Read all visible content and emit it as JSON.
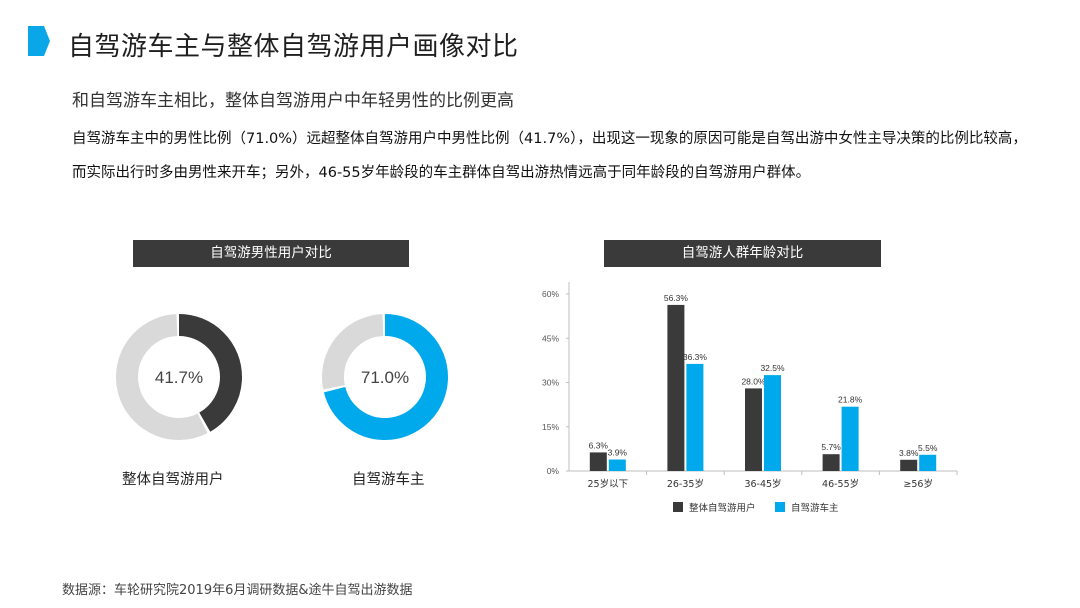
{
  "header": {
    "title": "自驾游车主与整体自驾游用户画像对比",
    "accent_color": "#0aa7e8"
  },
  "summary": {
    "subtitle": "和自驾游车主相比，整体自驾游用户中年轻男性的比例更高",
    "description": "自驾游车主中的男性比例（71.0%）远超整体自驾游用户中男性比例（41.7%），出现这一现象的原因可能是自驾出游中女性主导决策的比例比较高，而实际出行时多由男性来开车；另外，46-55岁年龄段的车主群体自驾出游热情远高于同年龄段的自驾游用户群体。"
  },
  "source": "数据源：车轮研究院2019年6月调研数据&途牛自驾出游数据",
  "colors": {
    "dark": "#3a3a3a",
    "blue": "#00a8ec",
    "track": "#d9d9d9"
  },
  "chart_data": [
    {
      "type": "pie",
      "title": "自驾游男性用户对比",
      "series": [
        {
          "name": "整体自驾游用户",
          "value": 41.7,
          "label": "41.7%"
        },
        {
          "name": "自驾游车主",
          "value": 71.0,
          "label": "71.0%"
        }
      ]
    },
    {
      "type": "bar",
      "title": "自驾游人群年龄对比",
      "categories": [
        "25岁以下",
        "26-35岁",
        "36-45岁",
        "46-55岁",
        "≥56岁"
      ],
      "series": [
        {
          "name": "整体自驾游用户",
          "values": [
            6.3,
            56.3,
            28.0,
            5.7,
            3.8
          ],
          "labels": [
            "6.3%",
            "56.3%",
            "28.0%",
            "5.7%",
            "3.8%"
          ]
        },
        {
          "name": "自驾游车主",
          "values": [
            3.9,
            36.3,
            32.5,
            21.8,
            5.5
          ],
          "labels": [
            "3.9%",
            "36.3%",
            "32.5%",
            "21.8%",
            "5.5%"
          ]
        }
      ],
      "yticks": [
        "0%",
        "15%",
        "30%",
        "45%",
        "60%"
      ],
      "ylim": [
        0,
        60
      ],
      "grid": false,
      "legend": "bottom"
    }
  ]
}
